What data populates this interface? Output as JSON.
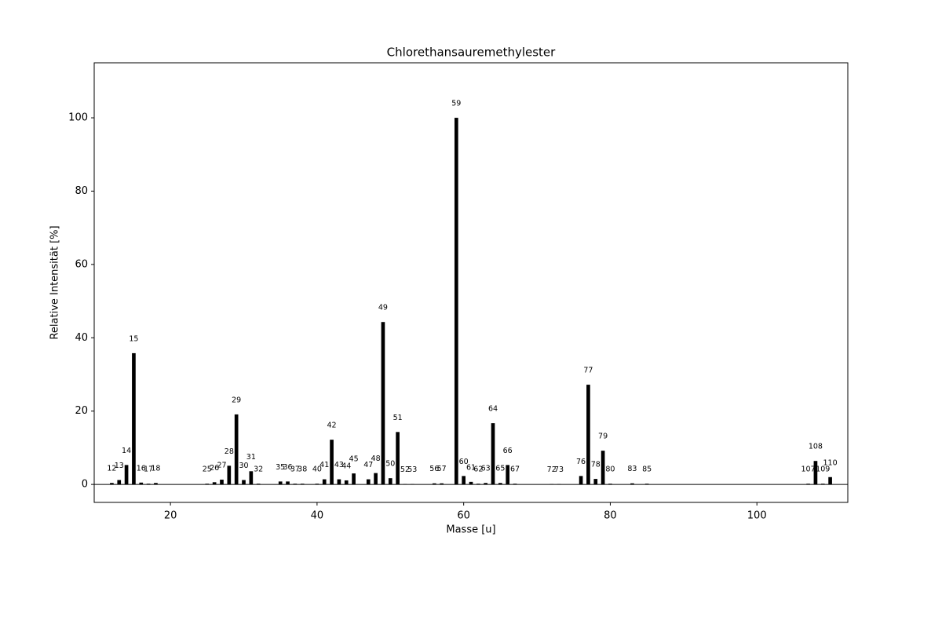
{
  "chart_data": {
    "type": "bar",
    "title": "Chlorethansauremethylester",
    "x_label": "Masse [u]",
    "y_label": "Relative Intensität [%]",
    "x": [
      12,
      13,
      14,
      15,
      16,
      17,
      18,
      25,
      26,
      27,
      28,
      29,
      30,
      31,
      32,
      35,
      36,
      37,
      38,
      40,
      41,
      42,
      43,
      44,
      45,
      47,
      48,
      49,
      50,
      51,
      52,
      53,
      56,
      57,
      59,
      60,
      61,
      62,
      63,
      64,
      65,
      66,
      67,
      72,
      73,
      76,
      77,
      78,
      79,
      80,
      83,
      85,
      107,
      108,
      109,
      110
    ],
    "values": [
      0.4,
      1.2,
      5.3,
      35.8,
      0.5,
      0.2,
      0.4,
      0.2,
      0.6,
      1.3,
      5.1,
      19.1,
      1.2,
      3.6,
      0.2,
      0.8,
      0.8,
      0.2,
      0.2,
      0.2,
      1.4,
      12.2,
      1.4,
      1.1,
      3.0,
      1.4,
      3.1,
      44.3,
      1.7,
      14.3,
      0.1,
      0.1,
      0.3,
      0.3,
      100,
      2.3,
      0.7,
      0.2,
      0.4,
      16.7,
      0.4,
      5.3,
      0.2,
      0.1,
      0.1,
      2.3,
      27.2,
      1.5,
      9.2,
      0.2,
      0.3,
      0.2,
      0.2,
      6.4,
      0.2,
      2.0
    ],
    "color": "#000000",
    "xlim": [
      9.6,
      112.4
    ],
    "ylim": [
      -4.9,
      115
    ],
    "xticks": [
      20,
      40,
      60,
      80,
      100
    ],
    "yticks": [
      0,
      20,
      40,
      60,
      80,
      100
    ]
  }
}
